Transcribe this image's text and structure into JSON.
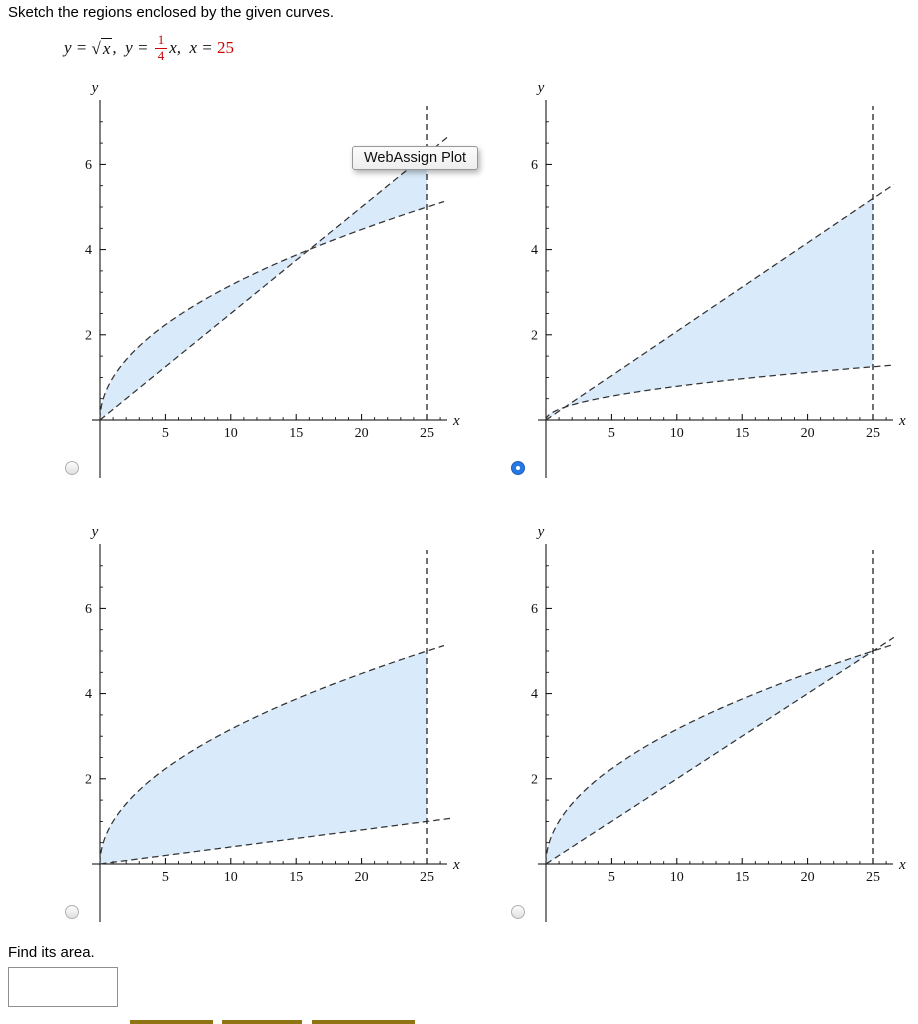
{
  "page": {
    "title": "Sketch the regions enclosed by the given curves.",
    "find_area_label": "Find its area.",
    "answer_value": ""
  },
  "equation": {
    "part1": "y = ",
    "sqrt_symbol": "√",
    "sqrt_arg": "x",
    "part2": ",  y = ",
    "frac_num": "1",
    "frac_den": "4",
    "part3": "x,  x = ",
    "value": "25",
    "accent_color": "#cc0000"
  },
  "tooltip": {
    "label": "WebAssign Plot"
  },
  "colors": {
    "region_fill": "#d9ebfb",
    "curve_stroke": "#333333",
    "axis_stroke": "#000000",
    "radio_selected": "#2678e3",
    "button_sliver": "#8e7414"
  },
  "chart_data": [
    {
      "type": "area",
      "option_id": "A",
      "position": "top-left",
      "selected": false,
      "xlabel": "x",
      "ylabel": "y",
      "x_ticks": [
        5,
        10,
        15,
        20,
        25
      ],
      "y_ticks": [
        2,
        4,
        6
      ],
      "xlim": [
        0,
        26.8
      ],
      "ylim": [
        0,
        7.5
      ],
      "curves": [
        {
          "name": "y = sqrt(x)",
          "fn": "sqrt",
          "coef": 1,
          "domain": [
            0,
            26.3
          ]
        },
        {
          "name": "y = x/4",
          "fn": "linear",
          "coef": 0.25,
          "domain": [
            0,
            26.6
          ]
        },
        {
          "name": "x = 25",
          "fn": "vline",
          "x": 25
        }
      ],
      "shaded_regions": [
        {
          "desc": "between y=sqrt(x) above and y=x/4 below from x=0 to x=16",
          "upper": 0,
          "lower": 1,
          "from": 0,
          "to": 16
        },
        {
          "desc": "between y=x/4 above and y=sqrt(x) below from x=16 to x=25",
          "upper": 1,
          "lower": 0,
          "from": 16,
          "to": 25
        }
      ]
    },
    {
      "type": "area",
      "option_id": "B",
      "position": "top-right",
      "selected": true,
      "xlabel": "x",
      "ylabel": "y",
      "x_ticks": [
        5,
        10,
        15,
        20,
        25
      ],
      "y_ticks": [
        2,
        4,
        6
      ],
      "xlim": [
        0,
        26.8
      ],
      "ylim": [
        0,
        7.5
      ],
      "curves": [
        {
          "name": "straight line y ≈ 0.21x",
          "fn": "linear",
          "coef": 0.208,
          "domain": [
            0,
            26.6
          ]
        },
        {
          "name": "flat curve y = 0.25·sqrt(x)",
          "fn": "sqrt",
          "coef": 0.25,
          "domain": [
            0,
            26.6
          ]
        },
        {
          "name": "x = 25",
          "fn": "vline",
          "x": 25
        }
      ],
      "shaded_regions": [
        {
          "desc": "between the line above and the flat curve below from x=0 to x=25",
          "upper": 0,
          "lower": 1,
          "from": 0,
          "to": 25
        }
      ]
    },
    {
      "type": "area",
      "option_id": "C",
      "position": "bottom-left",
      "selected": false,
      "xlabel": "x",
      "ylabel": "y",
      "x_ticks": [
        5,
        10,
        15,
        20,
        25
      ],
      "y_ticks": [
        2,
        4,
        6
      ],
      "xlim": [
        0,
        26.8
      ],
      "ylim": [
        0,
        7.5
      ],
      "curves": [
        {
          "name": "y = sqrt(x)",
          "fn": "sqrt",
          "coef": 1,
          "domain": [
            0,
            26.3
          ]
        },
        {
          "name": "nearly flat line y = 0.04x",
          "fn": "linear",
          "coef": 0.04,
          "domain": [
            0,
            26.8
          ]
        },
        {
          "name": "x = 25",
          "fn": "vline",
          "x": 25
        }
      ],
      "shaded_regions": [
        {
          "desc": "between y=sqrt(x) above and the nearly flat line below from x=0 to x=25",
          "upper": 0,
          "lower": 1,
          "from": 0,
          "to": 25
        }
      ]
    },
    {
      "type": "area",
      "option_id": "D",
      "position": "bottom-right",
      "selected": false,
      "xlabel": "x",
      "ylabel": "y",
      "x_ticks": [
        5,
        10,
        15,
        20,
        25
      ],
      "y_ticks": [
        2,
        4,
        6
      ],
      "xlim": [
        0,
        26.8
      ],
      "ylim": [
        0,
        7.5
      ],
      "curves": [
        {
          "name": "y = sqrt(x)",
          "fn": "sqrt",
          "coef": 1,
          "domain": [
            0,
            26.5
          ]
        },
        {
          "name": "y = x/5",
          "fn": "linear",
          "coef": 0.2,
          "domain": [
            0,
            26.6
          ]
        },
        {
          "name": "x = 25",
          "fn": "vline",
          "x": 25
        }
      ],
      "shaded_regions": [
        {
          "desc": "between y=sqrt(x) above and y=x/5 below from x=0 to x=25 (curves meet at (25,5))",
          "upper": 0,
          "lower": 1,
          "from": 0,
          "to": 25
        }
      ]
    }
  ]
}
